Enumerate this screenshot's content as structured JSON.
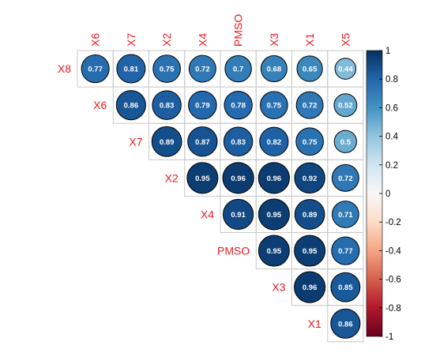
{
  "chart_data": {
    "type": "heatmap",
    "title": "",
    "column_labels": [
      "X6",
      "X7",
      "X2",
      "X4",
      "PMSO",
      "X3",
      "X1",
      "X5"
    ],
    "row_labels": [
      "X8",
      "X6",
      "X7",
      "X2",
      "X4",
      "PMSO",
      "X3",
      "X1"
    ],
    "cells": [
      {
        "row": "X8",
        "col": "X6",
        "value": 0.77
      },
      {
        "row": "X8",
        "col": "X7",
        "value": 0.81
      },
      {
        "row": "X8",
        "col": "X2",
        "value": 0.75
      },
      {
        "row": "X8",
        "col": "X4",
        "value": 0.72
      },
      {
        "row": "X8",
        "col": "PMSO",
        "value": 0.7
      },
      {
        "row": "X8",
        "col": "X3",
        "value": 0.68
      },
      {
        "row": "X8",
        "col": "X1",
        "value": 0.65
      },
      {
        "row": "X8",
        "col": "X5",
        "value": 0.44
      },
      {
        "row": "X6",
        "col": "X7",
        "value": 0.86
      },
      {
        "row": "X6",
        "col": "X2",
        "value": 0.83
      },
      {
        "row": "X6",
        "col": "X4",
        "value": 0.79
      },
      {
        "row": "X6",
        "col": "PMSO",
        "value": 0.78
      },
      {
        "row": "X6",
        "col": "X3",
        "value": 0.75
      },
      {
        "row": "X6",
        "col": "X1",
        "value": 0.72
      },
      {
        "row": "X6",
        "col": "X5",
        "value": 0.52
      },
      {
        "row": "X7",
        "col": "X2",
        "value": 0.89
      },
      {
        "row": "X7",
        "col": "X4",
        "value": 0.87
      },
      {
        "row": "X7",
        "col": "PMSO",
        "value": 0.83
      },
      {
        "row": "X7",
        "col": "X3",
        "value": 0.82
      },
      {
        "row": "X7",
        "col": "X1",
        "value": 0.75
      },
      {
        "row": "X7",
        "col": "X5",
        "value": 0.5
      },
      {
        "row": "X2",
        "col": "X4",
        "value": 0.95
      },
      {
        "row": "X2",
        "col": "PMSO",
        "value": 0.96
      },
      {
        "row": "X2",
        "col": "X3",
        "value": 0.96
      },
      {
        "row": "X2",
        "col": "X1",
        "value": 0.92
      },
      {
        "row": "X2",
        "col": "X5",
        "value": 0.72
      },
      {
        "row": "X4",
        "col": "PMSO",
        "value": 0.91
      },
      {
        "row": "X4",
        "col": "X3",
        "value": 0.95
      },
      {
        "row": "X4",
        "col": "X1",
        "value": 0.89
      },
      {
        "row": "X4",
        "col": "X5",
        "value": 0.71
      },
      {
        "row": "PMSO",
        "col": "X3",
        "value": 0.95
      },
      {
        "row": "PMSO",
        "col": "X1",
        "value": 0.95
      },
      {
        "row": "PMSO",
        "col": "X5",
        "value": 0.77
      },
      {
        "row": "X3",
        "col": "X1",
        "value": 0.96
      },
      {
        "row": "X3",
        "col": "X5",
        "value": 0.85
      },
      {
        "row": "X1",
        "col": "X5",
        "value": 0.86
      }
    ],
    "colorbar": {
      "range": [
        -1,
        1
      ],
      "ticks": [
        "1",
        "0.8",
        "0.6",
        "0.4",
        "0.2",
        "0",
        "-0.2",
        "-0.4",
        "-0.6",
        "-0.8",
        "-1"
      ],
      "low_color": "#67001f",
      "mid_color": "#f7f7f7",
      "high_color": "#053061"
    },
    "label_color": "#e8191e",
    "grid": true
  }
}
